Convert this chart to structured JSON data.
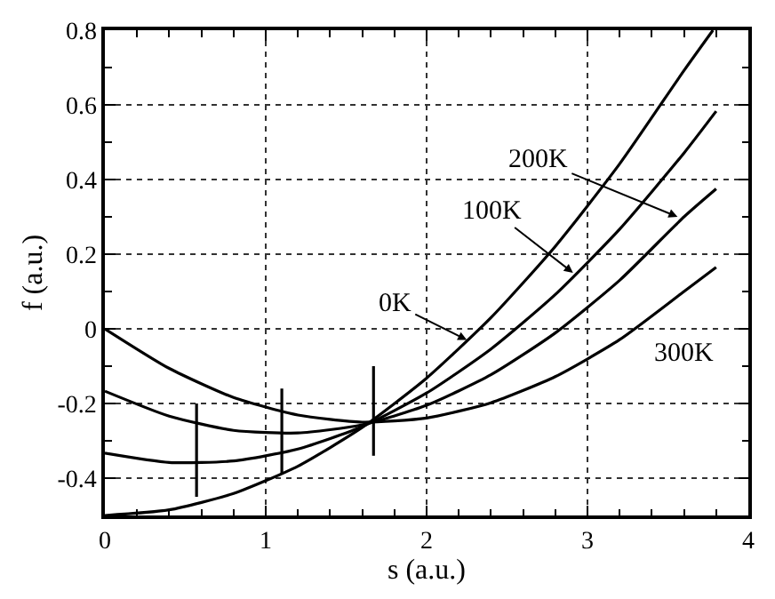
{
  "chart_data": {
    "type": "line",
    "xlabel": "s (a.u.)",
    "ylabel": "f (a.u.)",
    "x": [
      0,
      0.4,
      0.8,
      1.2,
      1.6,
      2.0,
      2.4,
      2.8,
      3.2,
      3.6,
      3.8
    ],
    "series": [
      {
        "color": "#000000",
        "x": [
          0,
          0.4,
          0.8,
          1.2,
          1.6,
          2.0,
          2.4,
          2.8,
          3.2,
          3.6,
          3.78
        ],
        "values": [
          -0.5,
          -0.485,
          -0.441,
          -0.368,
          -0.264,
          -0.132,
          0.03,
          0.221,
          0.442,
          0.692,
          0.8
        ]
      },
      {
        "color": "#000000",
        "values": [
          -0.333,
          -0.358,
          -0.354,
          -0.322,
          -0.262,
          -0.172,
          -0.054,
          0.092,
          0.267,
          0.471,
          0.583
        ]
      },
      {
        "color": "#000000",
        "values": [
          -0.167,
          -0.234,
          -0.272,
          -0.279,
          -0.257,
          -0.205,
          -0.123,
          -0.011,
          0.13,
          0.3,
          0.375
        ]
      },
      {
        "color": "#000000",
        "values": [
          0.0,
          -0.106,
          -0.184,
          -0.231,
          -0.25,
          -0.239,
          -0.198,
          -0.128,
          -0.029,
          0.1,
          0.165
        ]
      },
      {
        "color": "#000000",
        "x": [
          0.57,
          0.57
        ],
        "values": [
          -0.45,
          -0.2
        ]
      },
      {
        "color": "#000000",
        "x": [
          1.1,
          1.1
        ],
        "values": [
          -0.39,
          -0.16
        ]
      },
      {
        "color": "#000000",
        "x": [
          1.67,
          1.67
        ],
        "values": [
          -0.34,
          -0.1
        ]
      }
    ],
    "xlim": [
      0,
      4
    ],
    "xticks": [
      0,
      1,
      2,
      3,
      4
    ],
    "ylim": [
      -0.5,
      0.8
    ],
    "yticks": [
      -0.4,
      -0.2,
      0,
      0.2,
      0.4,
      0.6,
      0.8
    ],
    "annotations": [
      {
        "text": "0K",
        "x": 2.25,
        "y": -0.03
      },
      {
        "text": "100K",
        "x": 2.91,
        "y": 0.15
      },
      {
        "text": "200K",
        "x": 3.56,
        "y": 0.3
      },
      {
        "text": "300K",
        "x": 3.6,
        "y": 0.1
      }
    ],
    "grid": true,
    "marker": "none",
    "line_style": "solid"
  }
}
